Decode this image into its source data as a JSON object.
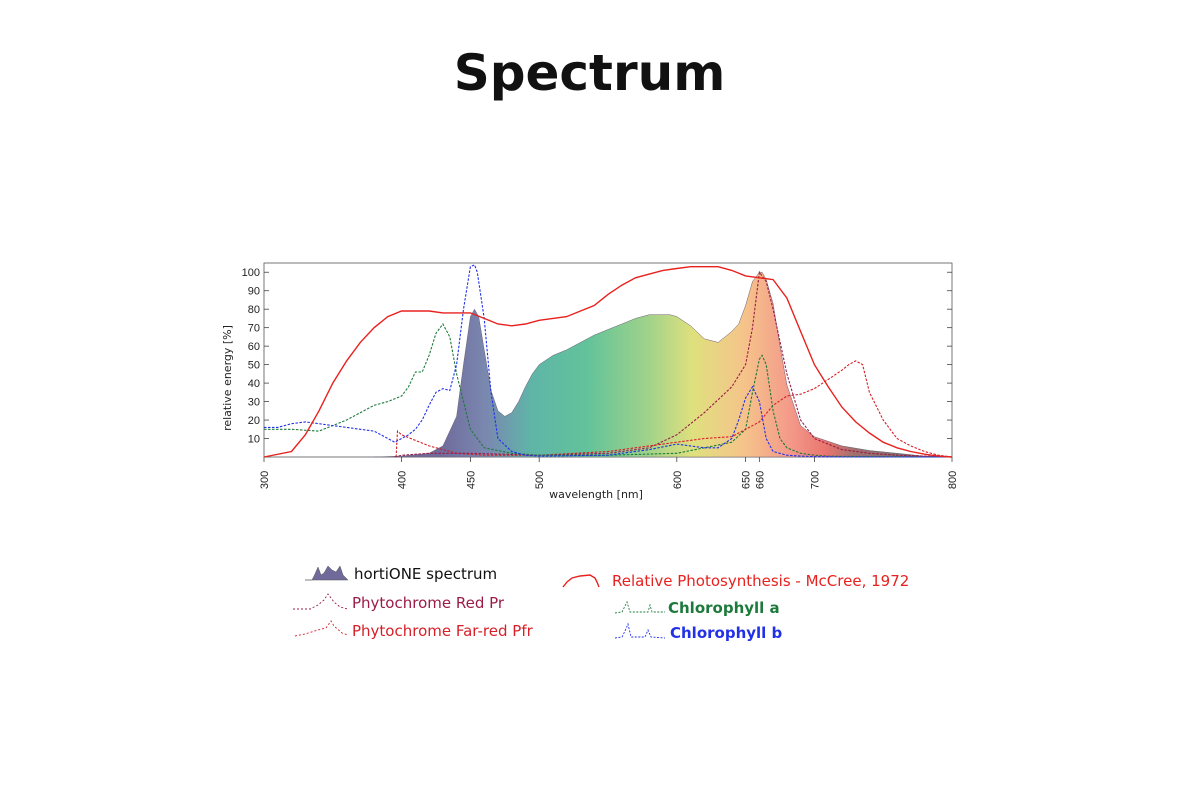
{
  "page": {
    "title": "Spectrum"
  },
  "chart_data": {
    "type": "line",
    "title": "Spectrum",
    "xlabel": "wavelength [nm]",
    "ylabel": "relative energy [%]",
    "xlim": [
      300,
      800
    ],
    "ylim": [
      0,
      105
    ],
    "x_ticks": [
      300,
      400,
      450,
      500,
      600,
      650,
      660,
      700,
      800
    ],
    "x_tick_labels": [
      "300",
      "400",
      "450",
      "500",
      "600",
      "650",
      "660",
      "700",
      "800"
    ],
    "y_ticks": [
      10,
      20,
      30,
      40,
      50,
      60,
      70,
      80,
      90,
      100
    ],
    "grid": false,
    "legend_position": "bottom",
    "series": [
      {
        "key": "horti",
        "name": "hortiONE spectrum",
        "style": "filled-rainbow",
        "color": "#8a7fa0",
        "x": [
          380,
          400,
          420,
          430,
          440,
          445,
          450,
          453,
          456,
          460,
          465,
          470,
          475,
          480,
          485,
          490,
          495,
          500,
          510,
          520,
          530,
          540,
          550,
          560,
          570,
          580,
          590,
          595,
          600,
          610,
          620,
          630,
          640,
          645,
          650,
          655,
          660,
          662,
          665,
          670,
          675,
          680,
          690,
          700,
          720,
          740,
          760,
          780,
          800
        ],
        "y": [
          0,
          0.5,
          2,
          6,
          22,
          50,
          76,
          80,
          76,
          58,
          36,
          25,
          22,
          24,
          30,
          38,
          45,
          50,
          55,
          58,
          62,
          66,
          69,
          72,
          75,
          77,
          77,
          77,
          76,
          71,
          64,
          62,
          68,
          72,
          82,
          95,
          100,
          100,
          96,
          83,
          60,
          39,
          17,
          11,
          6,
          3.5,
          2,
          0.5,
          0
        ]
      },
      {
        "key": "mccree",
        "name": "Relative Photosynthesis - McCree, 1972",
        "style": "solid",
        "color": "#e8211e",
        "x": [
          300,
          320,
          330,
          340,
          350,
          360,
          370,
          380,
          390,
          400,
          410,
          420,
          430,
          440,
          450,
          460,
          470,
          480,
          490,
          500,
          510,
          520,
          530,
          540,
          550,
          560,
          570,
          580,
          590,
          600,
          610,
          620,
          630,
          640,
          650,
          660,
          670,
          680,
          690,
          700,
          710,
          720,
          730,
          740,
          750,
          760,
          770,
          780,
          790,
          800
        ],
        "y": [
          0,
          3,
          12,
          25,
          40,
          52,
          62,
          70,
          76,
          79,
          79,
          79,
          78,
          78,
          78,
          75,
          72,
          71,
          72,
          74,
          75,
          76,
          79,
          82,
          88,
          93,
          97,
          99,
          101,
          102,
          103,
          103,
          103,
          101,
          98,
          97,
          96,
          86,
          68,
          50,
          38,
          27,
          19,
          13,
          8,
          5,
          3,
          1.5,
          0.5,
          0
        ]
      },
      {
        "key": "phyr",
        "name": "Phytochrome Red Pr",
        "style": "dashed",
        "color": "#9b1c47",
        "x": [
          395,
          400,
          420,
          450,
          500,
          550,
          580,
          600,
          620,
          640,
          650,
          655,
          660,
          665,
          670,
          680,
          690,
          700,
          720,
          740,
          760,
          780,
          800
        ],
        "y": [
          0,
          1,
          2,
          2,
          1,
          2,
          5,
          12,
          24,
          38,
          50,
          70,
          100,
          95,
          80,
          45,
          20,
          10,
          4,
          2,
          1,
          0.5,
          0
        ]
      },
      {
        "key": "phyfr",
        "name": "Phytochrome Far-red Pfr",
        "style": "dashed",
        "color": "#d71f28",
        "x": [
          396,
          397,
          400,
          420,
          440,
          460,
          500,
          550,
          600,
          620,
          640,
          660,
          670,
          680,
          690,
          700,
          710,
          720,
          725,
          730,
          735,
          740,
          750,
          760,
          770,
          780,
          790,
          800
        ],
        "y": [
          0,
          14,
          12,
          6,
          2,
          1,
          1,
          3,
          8,
          10,
          11,
          19,
          28,
          33,
          34,
          37,
          42,
          47,
          50,
          52,
          50,
          35,
          20,
          10,
          6,
          3,
          1,
          0
        ]
      },
      {
        "key": "chla",
        "name": "Chlorophyll a",
        "style": "dashed",
        "color": "#1e7a3c",
        "x": [
          300,
          320,
          340,
          360,
          380,
          390,
          400,
          405,
          410,
          415,
          420,
          425,
          430,
          435,
          440,
          450,
          460,
          480,
          500,
          550,
          600,
          620,
          640,
          650,
          655,
          660,
          662,
          665,
          670,
          675,
          680,
          690,
          700,
          710,
          720,
          740,
          760,
          780,
          800
        ],
        "y": [
          15,
          15,
          14,
          20,
          28,
          30,
          33,
          38,
          46,
          46,
          55,
          67,
          72,
          65,
          45,
          15,
          5,
          2,
          1,
          1,
          2,
          5,
          8,
          15,
          35,
          53,
          55,
          50,
          25,
          10,
          5,
          2,
          1,
          0.5,
          0.3,
          0.2,
          0.1,
          0,
          0
        ]
      },
      {
        "key": "chlb",
        "name": "Chlorophyll b",
        "style": "dashed",
        "color": "#2231e8",
        "x": [
          300,
          310,
          320,
          330,
          340,
          350,
          360,
          370,
          380,
          390,
          395,
          400,
          405,
          410,
          415,
          420,
          425,
          430,
          435,
          440,
          445,
          450,
          453,
          455,
          460,
          465,
          470,
          480,
          490,
          500,
          550,
          580,
          600,
          620,
          630,
          640,
          645,
          650,
          655,
          660,
          665,
          670,
          680,
          690,
          700,
          720,
          760,
          800
        ],
        "y": [
          16,
          16,
          18,
          19,
          18,
          17,
          16,
          15,
          14,
          10,
          8,
          10,
          12,
          15,
          20,
          28,
          35,
          37,
          36,
          50,
          80,
          103,
          104,
          100,
          75,
          35,
          10,
          3,
          1,
          0.5,
          1,
          4,
          7,
          5,
          5,
          10,
          20,
          32,
          38,
          30,
          10,
          3,
          1,
          0.5,
          0.2,
          0,
          0,
          0
        ]
      }
    ]
  },
  "legend": {
    "horti_label": "hortiONE spectrum",
    "mccree_label": "Relative Photosynthesis - McCree, 1972",
    "phyr_label": "Phytochrome Red Pr",
    "phyfr_label": "Phytochrome Far-red Pfr",
    "chla_label": "Chlorophyll a",
    "chlb_label": "Chlorophyll b",
    "colors": {
      "horti": "#111111",
      "mccree": "#e8211e",
      "phyr": "#9b1c47",
      "phyfr": "#d71f28",
      "chla": "#1e7a3c",
      "chlb": "#2231e8"
    }
  }
}
